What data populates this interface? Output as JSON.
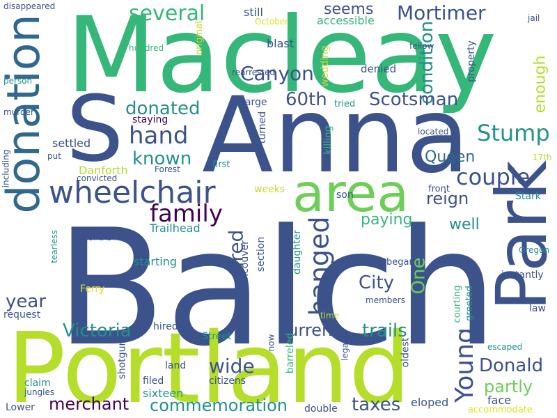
{
  "palette": {
    "purple": "#440154",
    "indigo": "#3b528b",
    "steel": "#31688e",
    "teal": "#21918c",
    "seagreen": "#1f9e89",
    "green": "#35b779",
    "lime": "#6ece58",
    "yellowgreen": "#b5de2b",
    "yellow": "#e0e021",
    "ochre": "#c8d830",
    "darkteal": "#26828e"
  },
  "words": [
    {
      "text": "Balch",
      "color": "indigo"
    },
    {
      "text": "Macleay",
      "color": "green"
    },
    {
      "text": "Anna",
      "color": "indigo"
    },
    {
      "text": "Portland",
      "color": "yellowgreen"
    },
    {
      "text": "S",
      "color": "indigo"
    },
    {
      "text": "Park",
      "color": "indigo"
    },
    {
      "text": "donation",
      "color": "steel"
    },
    {
      "text": "area",
      "color": "lime"
    },
    {
      "text": "wheelchair",
      "color": "indigo"
    },
    {
      "text": "hanged",
      "color": "indigo"
    },
    {
      "text": "family",
      "color": "purple"
    },
    {
      "text": "Stump",
      "color": "teal"
    },
    {
      "text": "couple",
      "color": "indigo"
    },
    {
      "text": "hand",
      "color": "indigo"
    },
    {
      "text": "Young",
      "color": "indigo"
    },
    {
      "text": "Canyon",
      "color": "indigo"
    },
    {
      "text": "Mortimer",
      "color": "indigo"
    },
    {
      "text": "several",
      "color": "green"
    },
    {
      "text": "condition",
      "color": "teal"
    },
    {
      "text": "Scotsman",
      "color": "indigo"
    },
    {
      "text": "donated",
      "color": "teal"
    },
    {
      "text": "60th",
      "color": "indigo"
    },
    {
      "text": "Queen",
      "color": "steel"
    },
    {
      "text": "known",
      "color": "teal"
    },
    {
      "text": "reign",
      "color": "indigo"
    },
    {
      "text": "tired",
      "color": "indigo"
    },
    {
      "text": "City",
      "color": "indigo"
    },
    {
      "text": "One",
      "color": "lime"
    },
    {
      "text": "year",
      "color": "indigo"
    },
    {
      "text": "Victoria",
      "color": "teal"
    },
    {
      "text": "current",
      "color": "indigo"
    },
    {
      "text": "trails",
      "color": "teal"
    },
    {
      "text": "wide",
      "color": "indigo"
    },
    {
      "text": "Donald",
      "color": "indigo"
    },
    {
      "text": "partly",
      "color": "lime"
    },
    {
      "text": "merchant",
      "color": "purple"
    },
    {
      "text": "commemoration",
      "color": "teal"
    },
    {
      "text": "taxes",
      "color": "indigo"
    },
    {
      "text": "paying",
      "color": "green"
    },
    {
      "text": "well",
      "color": "teal"
    },
    {
      "text": "enough",
      "color": "yellowgreen"
    },
    {
      "text": "seems",
      "color": "indigo"
    },
    {
      "text": "accessible",
      "color": "green"
    },
    {
      "text": "blast",
      "color": "indigo"
    },
    {
      "text": "still",
      "color": "indigo"
    },
    {
      "text": "October",
      "color": "yellow"
    },
    {
      "text": "jail",
      "color": "indigo"
    },
    {
      "text": "fellow",
      "color": "indigo"
    },
    {
      "text": "property",
      "color": "indigo"
    },
    {
      "text": "denied",
      "color": "indigo"
    },
    {
      "text": "wedding",
      "color": "ochre"
    },
    {
      "text": "rearrested",
      "color": "indigo"
    },
    {
      "text": "original",
      "color": "ochre"
    },
    {
      "text": "hundred",
      "color": "green"
    },
    {
      "text": "disappeared",
      "color": "indigo"
    },
    {
      "text": "person",
      "color": "teal"
    },
    {
      "text": "murder",
      "color": "indigo"
    },
    {
      "text": "including",
      "color": "indigo"
    },
    {
      "text": "settled",
      "color": "indigo"
    },
    {
      "text": "put",
      "color": "indigo"
    },
    {
      "text": "Danforth",
      "color": "yellowgreen"
    },
    {
      "text": "convicted",
      "color": "indigo"
    },
    {
      "text": "Forest",
      "color": "indigo"
    },
    {
      "text": "first",
      "color": "teal"
    },
    {
      "text": "killing",
      "color": "green"
    },
    {
      "text": "turned",
      "color": "indigo"
    },
    {
      "text": "large",
      "color": "indigo"
    },
    {
      "text": "staying",
      "color": "purple"
    },
    {
      "text": "tried",
      "color": "teal"
    },
    {
      "text": "located",
      "color": "indigo"
    },
    {
      "text": "17th",
      "color": "yellowgreen"
    },
    {
      "text": "front",
      "color": "indigo"
    },
    {
      "text": "Stark",
      "color": "teal"
    },
    {
      "text": "son",
      "color": "indigo"
    },
    {
      "text": "weeks",
      "color": "ochre"
    },
    {
      "text": "Trailhead",
      "color": "teal"
    },
    {
      "text": "section",
      "color": "indigo"
    },
    {
      "text": "Vancouver",
      "color": "indigo"
    },
    {
      "text": "daughter",
      "color": "teal"
    },
    {
      "text": "began",
      "color": "indigo"
    },
    {
      "text": "Oregon",
      "color": "teal"
    },
    {
      "text": "instantly",
      "color": "indigo"
    },
    {
      "text": "months",
      "color": "indigo"
    },
    {
      "text": "starting",
      "color": "teal"
    },
    {
      "text": "tearless",
      "color": "teal"
    },
    {
      "text": "Ferry",
      "color": "yellow"
    },
    {
      "text": "request",
      "color": "indigo"
    },
    {
      "text": "members",
      "color": "indigo"
    },
    {
      "text": "time",
      "color": "yellowgreen"
    },
    {
      "text": "courting",
      "color": "green"
    },
    {
      "text": "greeted",
      "color": "teal"
    },
    {
      "text": "law",
      "color": "indigo"
    },
    {
      "text": "hired",
      "color": "indigo"
    },
    {
      "text": "Street",
      "color": "teal"
    },
    {
      "text": "escaped",
      "color": "teal"
    },
    {
      "text": "shotgun",
      "color": "indigo"
    },
    {
      "text": "land",
      "color": "indigo"
    },
    {
      "text": "now",
      "color": "indigo"
    },
    {
      "text": "barreled",
      "color": "green"
    },
    {
      "text": "legally",
      "color": "indigo"
    },
    {
      "text": "oldest",
      "color": "indigo"
    },
    {
      "text": "claim",
      "color": "teal"
    },
    {
      "text": "filed",
      "color": "indigo"
    },
    {
      "text": "citizens",
      "color": "indigo"
    },
    {
      "text": "jungles",
      "color": "indigo"
    },
    {
      "text": "sixteen",
      "color": "teal"
    },
    {
      "text": "face",
      "color": "indigo"
    },
    {
      "text": "Lower",
      "color": "indigo"
    },
    {
      "text": "double",
      "color": "indigo"
    },
    {
      "text": "eloped",
      "color": "indigo"
    },
    {
      "text": "accommodate",
      "color": "yellow"
    }
  ]
}
